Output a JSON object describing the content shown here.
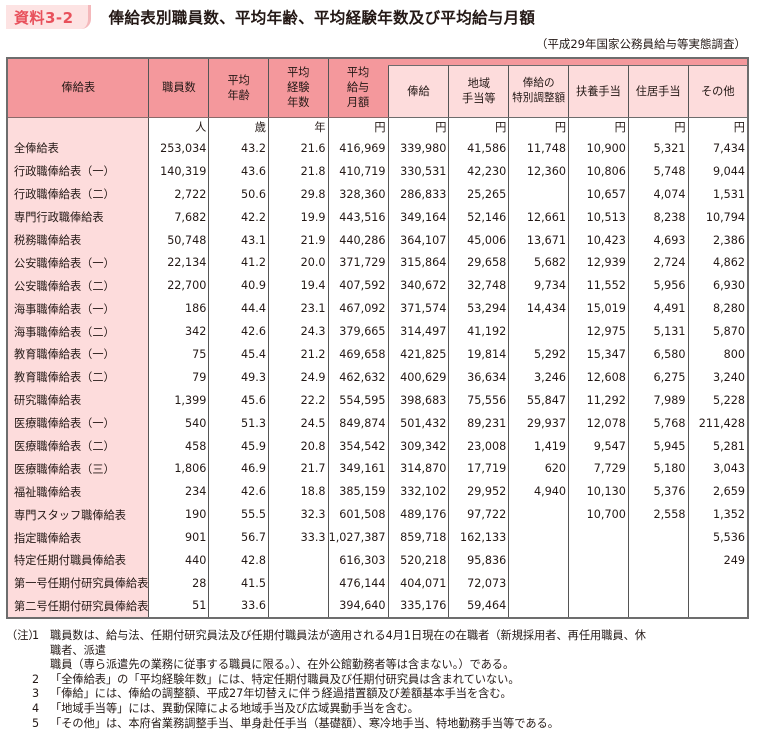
{
  "header": {
    "badge": "資料3-2",
    "title": "俸給表別職員数、平均年齢、平均経験年数及び平均給与月額",
    "source": "（平成29年国家公務員給与等実態調査）"
  },
  "table": {
    "columns": {
      "name": "俸給表",
      "staff": "職員数",
      "age": [
        "平均",
        "年齢"
      ],
      "exp": [
        "平均",
        "経験",
        "年数"
      ],
      "avg_pay": [
        "平均",
        "給与",
        "月額"
      ],
      "salary": "俸給",
      "regional": [
        "地域",
        "手当等"
      ],
      "special": [
        "俸給の",
        "特別調整額"
      ],
      "family": "扶養手当",
      "housing": "住居手当",
      "other": "その他"
    },
    "units": [
      "人",
      "歳",
      "年",
      "円",
      "円",
      "円",
      "円",
      "円",
      "円",
      "円"
    ],
    "rows": [
      [
        "全俸給表",
        "253,034",
        "43.2",
        "21.6",
        "416,969",
        "339,980",
        "41,586",
        "11,748",
        "10,900",
        "5,321",
        "7,434"
      ],
      [
        "行政職俸給表（一）",
        "140,319",
        "43.6",
        "21.8",
        "410,719",
        "330,531",
        "42,230",
        "12,360",
        "10,806",
        "5,748",
        "9,044"
      ],
      [
        "行政職俸給表（二）",
        "2,722",
        "50.6",
        "29.8",
        "328,360",
        "286,833",
        "25,265",
        "",
        "10,657",
        "4,074",
        "1,531"
      ],
      [
        "専門行政職俸給表",
        "7,682",
        "42.2",
        "19.9",
        "443,516",
        "349,164",
        "52,146",
        "12,661",
        "10,513",
        "8,238",
        "10,794"
      ],
      [
        "税務職俸給表",
        "50,748",
        "43.1",
        "21.9",
        "440,286",
        "364,107",
        "45,006",
        "13,671",
        "10,423",
        "4,693",
        "2,386"
      ],
      [
        "公安職俸給表（一）",
        "22,134",
        "41.2",
        "20.0",
        "371,729",
        "315,864",
        "29,658",
        "5,682",
        "12,939",
        "2,724",
        "4,862"
      ],
      [
        "公安職俸給表（二）",
        "22,700",
        "40.9",
        "19.4",
        "407,592",
        "340,672",
        "32,748",
        "9,734",
        "11,552",
        "5,956",
        "6,930"
      ],
      [
        "海事職俸給表（一）",
        "186",
        "44.4",
        "23.1",
        "467,092",
        "371,574",
        "53,294",
        "14,434",
        "15,019",
        "4,491",
        "8,280"
      ],
      [
        "海事職俸給表（二）",
        "342",
        "42.6",
        "24.3",
        "379,665",
        "314,497",
        "41,192",
        "",
        "12,975",
        "5,131",
        "5,870"
      ],
      [
        "教育職俸給表（一）",
        "75",
        "45.4",
        "21.2",
        "469,658",
        "421,825",
        "19,814",
        "5,292",
        "15,347",
        "6,580",
        "800"
      ],
      [
        "教育職俸給表（二）",
        "79",
        "49.3",
        "24.9",
        "462,632",
        "400,629",
        "36,634",
        "3,246",
        "12,608",
        "6,275",
        "3,240"
      ],
      [
        "研究職俸給表",
        "1,399",
        "45.6",
        "22.2",
        "554,595",
        "398,683",
        "75,556",
        "55,847",
        "11,292",
        "7,989",
        "5,228"
      ],
      [
        "医療職俸給表（一）",
        "540",
        "51.3",
        "24.5",
        "849,874",
        "501,432",
        "89,231",
        "29,937",
        "12,078",
        "5,768",
        "211,428"
      ],
      [
        "医療職俸給表（二）",
        "458",
        "45.9",
        "20.8",
        "354,542",
        "309,342",
        "23,008",
        "1,419",
        "9,547",
        "5,945",
        "5,281"
      ],
      [
        "医療職俸給表（三）",
        "1,806",
        "46.9",
        "21.7",
        "349,161",
        "314,870",
        "17,719",
        "620",
        "7,729",
        "5,180",
        "3,043"
      ],
      [
        "福祉職俸給表",
        "234",
        "42.6",
        "18.8",
        "385,159",
        "332,102",
        "29,952",
        "4,940",
        "10,130",
        "5,376",
        "2,659"
      ],
      [
        "専門スタッフ職俸給表",
        "190",
        "55.5",
        "32.3",
        "601,508",
        "489,176",
        "97,722",
        "",
        "10,700",
        "2,558",
        "1,352"
      ],
      [
        "指定職俸給表",
        "901",
        "56.7",
        "33.3",
        "1,027,387",
        "859,718",
        "162,133",
        "",
        "",
        "",
        "5,536"
      ],
      [
        "特定任期付職員俸給表",
        "440",
        "42.8",
        "",
        "616,303",
        "520,218",
        "95,836",
        "",
        "",
        "",
        "249"
      ],
      [
        "第一号任期付研究員俸給表",
        "28",
        "41.5",
        "",
        "476,144",
        "404,071",
        "72,073",
        "",
        "",
        "",
        ""
      ],
      [
        "第二号任期付研究員俸給表",
        "51",
        "33.6",
        "",
        "394,640",
        "335,176",
        "59,464",
        "",
        "",
        "",
        ""
      ]
    ]
  },
  "notes": {
    "label": "（注）",
    "items": [
      {
        "no": "1",
        "lines": [
          "職員数は、給与法、任期付研究員法及び任期付職員法が適用される4月1日現在の在職者（新規採用者、再任用職員、休職者、派遣",
          "職員（専ら派遣先の業務に従事する職員に限る。）、在外公館勤務者等は含まない。）である。"
        ]
      },
      {
        "no": "2",
        "lines": [
          "「全俸給表」の「平均経験年数」には、特定任期付職員及び任期付研究員は含まれていない。"
        ]
      },
      {
        "no": "3",
        "lines": [
          "「俸給」には、俸給の調整額、平成27年切替えに伴う経過措置額及び差額基本手当を含む。"
        ]
      },
      {
        "no": "4",
        "lines": [
          "「地域手当等」には、異動保障による地域手当及び広域異動手当を含む。"
        ]
      },
      {
        "no": "5",
        "lines": [
          "「その他」は、本府省業務調整手当、単身赴任手当（基礎額）、寒冷地手当、特地勤務手当等である。"
        ]
      }
    ]
  },
  "colors": {
    "header_dark": "#f4989c",
    "header_light": "#fddcdc",
    "badge_text": "#e8505b"
  }
}
